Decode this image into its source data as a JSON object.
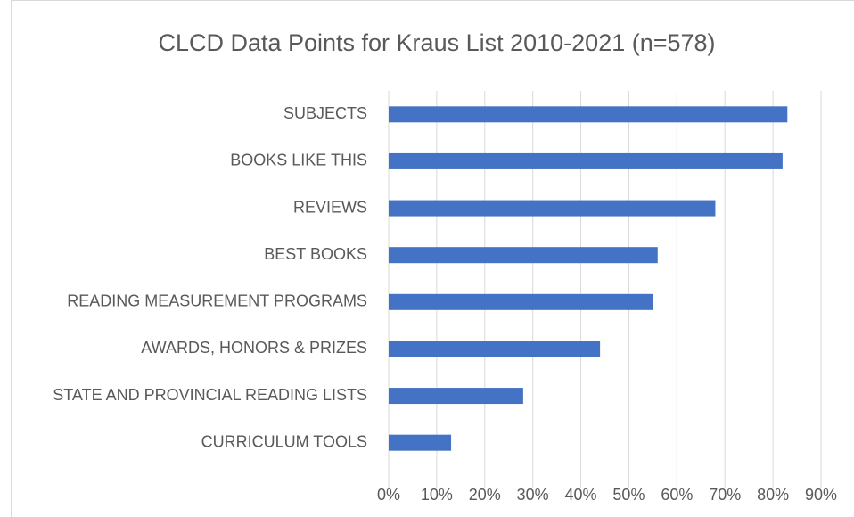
{
  "chart_data": {
    "type": "barh",
    "title": "CLCD Data Points for Kraus List 2010-2021 (n=578)",
    "categories": [
      "SUBJECTS",
      "BOOKS LIKE THIS",
      "REVIEWS",
      "BEST BOOKS",
      "READING MEASUREMENT PROGRAMS",
      "AWARDS, HONORS & PRIZES",
      "STATE AND PROVINCIAL READING LISTS",
      "CURRICULUM TOOLS"
    ],
    "values": [
      83,
      82,
      68,
      56,
      55,
      44,
      28,
      13
    ],
    "color": "#4472c4",
    "xlim": [
      0,
      90
    ],
    "xticks": [
      {
        "value": 0,
        "label": "0%"
      },
      {
        "value": 10,
        "label": "10%"
      },
      {
        "value": 20,
        "label": "20%"
      },
      {
        "value": 30,
        "label": "30%"
      },
      {
        "value": 40,
        "label": "40%"
      },
      {
        "value": 50,
        "label": "50%"
      },
      {
        "value": 60,
        "label": "60%"
      },
      {
        "value": 70,
        "label": "70%"
      },
      {
        "value": 80,
        "label": "80%"
      },
      {
        "value": 90,
        "label": "90%"
      }
    ],
    "grid": true
  }
}
